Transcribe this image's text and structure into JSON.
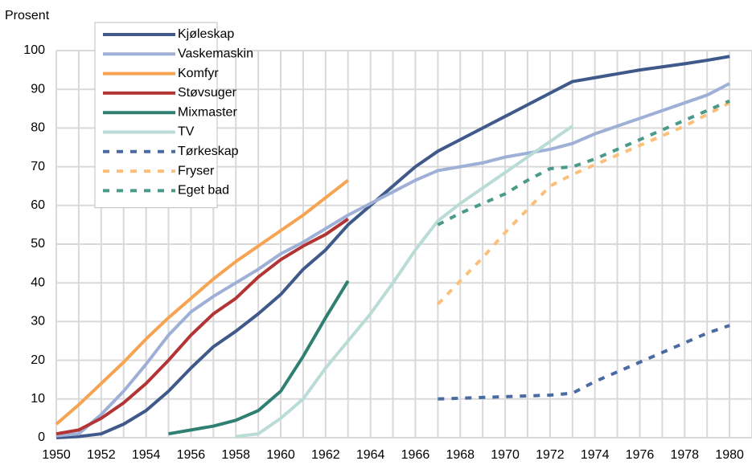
{
  "chart_data": {
    "type": "line",
    "ylabel": "Prosent",
    "x": [
      1950,
      1951,
      1952,
      1953,
      1954,
      1955,
      1956,
      1957,
      1958,
      1959,
      1960,
      1961,
      1962,
      1963,
      1964,
      1965,
      1966,
      1967,
      1968,
      1969,
      1970,
      1971,
      1972,
      1973,
      1974,
      1975,
      1976,
      1977,
      1978,
      1979,
      1980
    ],
    "xlim": [
      1950,
      1981
    ],
    "xticks": [
      1950,
      1952,
      1954,
      1956,
      1958,
      1960,
      1962,
      1964,
      1966,
      1968,
      1970,
      1972,
      1974,
      1976,
      1978,
      1980
    ],
    "xminorticks": [
      1951,
      1953,
      1955,
      1957,
      1959,
      1961,
      1963,
      1965,
      1967,
      1969,
      1971,
      1973,
      1975,
      1977,
      1979,
      1981
    ],
    "ylim": [
      0,
      100
    ],
    "yticks": [
      0,
      10,
      20,
      30,
      40,
      50,
      60,
      70,
      80,
      90,
      100
    ],
    "grid": true,
    "legend": "top-left",
    "series": [
      {
        "name": "Kjøleskap",
        "color": "#3f5a8a",
        "dashed": false,
        "values": [
          0,
          0.3,
          1,
          3.5,
          7,
          12,
          18,
          23.5,
          27.5,
          32,
          37,
          43.5,
          48.5,
          55,
          60,
          65,
          70,
          74,
          77,
          80,
          83,
          86,
          89,
          92,
          93,
          94,
          95,
          95.8,
          96.6,
          97.5,
          98.5
        ]
      },
      {
        "name": "Vaskemaskin",
        "color": "#9fb0d6",
        "dashed": false,
        "values": [
          0.5,
          1,
          6,
          12,
          19,
          26.5,
          32.5,
          36.5,
          40,
          43.5,
          47.5,
          50.5,
          54,
          57.5,
          60.5,
          63.5,
          66.5,
          69,
          70,
          71,
          72.5,
          73.5,
          74.5,
          76,
          78.5,
          80.5,
          82.5,
          84.5,
          86.5,
          88.5,
          91.5
        ]
      },
      {
        "name": "Komfyr",
        "color": "#f7a452",
        "dashed": false,
        "values": [
          3.5,
          8.5,
          14,
          19.5,
          25.5,
          31,
          36,
          41,
          45.5,
          49.5,
          53.5,
          57.5,
          62,
          66.5,
          null,
          null,
          null,
          null,
          null,
          null,
          null,
          null,
          null,
          null,
          null,
          null,
          null,
          null,
          null,
          null,
          null
        ]
      },
      {
        "name": "Støvsuger",
        "color": "#b33434",
        "dashed": false,
        "values": [
          1,
          2,
          5,
          9,
          14,
          20,
          26.5,
          32,
          36,
          41.5,
          46,
          49.5,
          52.5,
          56.5,
          null,
          null,
          null,
          null,
          null,
          null,
          null,
          null,
          null,
          null,
          null,
          null,
          null,
          null,
          null,
          null,
          null
        ]
      },
      {
        "name": "Mixmaster",
        "color": "#2f8073",
        "dashed": false,
        "values": [
          null,
          null,
          null,
          null,
          null,
          1,
          2,
          3,
          4.5,
          7,
          12,
          21,
          31,
          40.5,
          null,
          null,
          null,
          null,
          null,
          null,
          null,
          null,
          null,
          null,
          null,
          null,
          null,
          null,
          null,
          null,
          null
        ]
      },
      {
        "name": "TV",
        "color": "#b9dcd6",
        "dashed": false,
        "values": [
          null,
          null,
          null,
          null,
          null,
          null,
          null,
          null,
          0.3,
          1,
          5,
          10,
          18,
          25,
          32,
          40,
          48.5,
          56,
          60.5,
          64.5,
          68.5,
          72.5,
          76.5,
          80.5,
          null,
          null,
          null,
          null,
          null,
          null,
          null
        ]
      },
      {
        "name": "Tørkeskap",
        "color": "#4a6aa3",
        "dashed": true,
        "values": [
          null,
          null,
          null,
          null,
          null,
          null,
          null,
          null,
          null,
          null,
          null,
          null,
          null,
          null,
          null,
          null,
          null,
          10,
          10.2,
          10.4,
          10.6,
          10.8,
          11,
          11.5,
          14.5,
          17,
          19.5,
          22,
          24.5,
          27,
          29
        ]
      },
      {
        "name": "Fryser",
        "color": "#fbbf7a",
        "dashed": true,
        "values": [
          null,
          null,
          null,
          null,
          null,
          null,
          null,
          null,
          null,
          null,
          null,
          null,
          null,
          null,
          null,
          null,
          null,
          34.5,
          40.5,
          46.5,
          53,
          59,
          65,
          68,
          70.5,
          73,
          75.5,
          78,
          80.5,
          83.5,
          86.5
        ]
      },
      {
        "name": "Eget bad",
        "color": "#4a9a8a",
        "dashed": true,
        "values": [
          null,
          null,
          null,
          null,
          null,
          null,
          null,
          null,
          null,
          null,
          null,
          null,
          null,
          null,
          null,
          null,
          null,
          55,
          58,
          60.5,
          63,
          66.5,
          69.5,
          70,
          72,
          74.5,
          77,
          79.5,
          82,
          84.5,
          87
        ]
      }
    ]
  }
}
